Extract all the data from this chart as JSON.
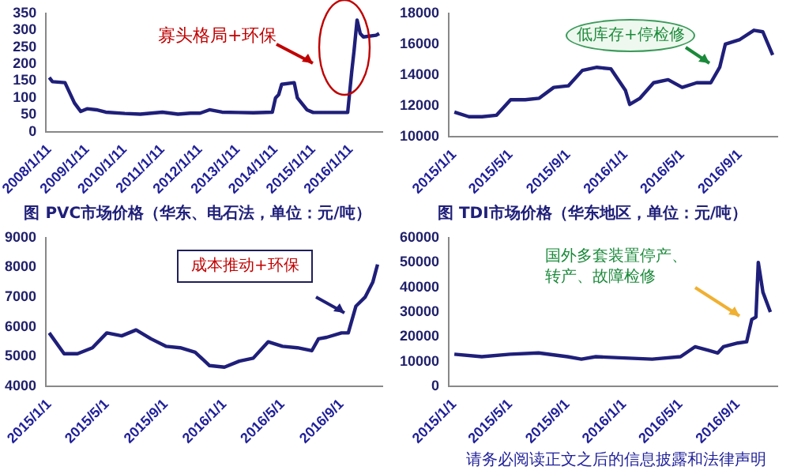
{
  "chart_data": [
    {
      "type": "line",
      "x": [
        "2008-01-01",
        "2008-02-01",
        "2008-06-01",
        "2008-09-01",
        "2008-11-01",
        "2009-01-01",
        "2009-04-01",
        "2009-07-01",
        "2010-01-01",
        "2010-06-01",
        "2011-01-01",
        "2011-06-01",
        "2011-10-01",
        "2012-01-01",
        "2012-04-01",
        "2012-08-01",
        "2013-01-01",
        "2013-06-01",
        "2013-12-01",
        "2014-01-01",
        "2014-02-01",
        "2014-03-01",
        "2014-07-01",
        "2014-08-01",
        "2014-11-01",
        "2015-01-01",
        "2015-12-01",
        "2016-01-10",
        "2016-02-01",
        "2016-03-01",
        "2016-04-01",
        "2016-05-01",
        "2016-09-01",
        "2016-10-01"
      ],
      "series": [
        {
          "color": "#1f1f7a",
          "values": [
            160,
            148,
            145,
            85,
            60,
            68,
            65,
            58,
            54,
            52,
            58,
            52,
            55,
            55,
            65,
            58,
            57,
            56,
            58,
            100,
            110,
            140,
            145,
            100,
            65,
            57,
            57,
            180,
            240,
            330,
            290,
            280,
            285,
            290
          ]
        }
      ],
      "xlim": [
        "2007-12-01",
        "2016-11-01"
      ],
      "xticks": [
        {
          "value": "2008-01-01",
          "label": "2008/1/11"
        },
        {
          "value": "2009-01-01",
          "label": "2009/1/11"
        },
        {
          "value": "2010-01-01",
          "label": "2010/1/11"
        },
        {
          "value": "2011-01-01",
          "label": "2011/1/11"
        },
        {
          "value": "2012-01-01",
          "label": "2012/1/11"
        },
        {
          "value": "2013-01-01",
          "label": "2013/1/11"
        },
        {
          "value": "2014-01-01",
          "label": "2014/1/11"
        },
        {
          "value": "2015-01-01",
          "label": "2015/1/11"
        },
        {
          "value": "2016-01-01",
          "label": "2016/1/11"
        }
      ],
      "ylim": [
        0,
        350
      ],
      "yticks": [
        0,
        50,
        100,
        150,
        200,
        250,
        300,
        350
      ],
      "grid": false,
      "legend": false,
      "marker": "none",
      "line_style": "solid",
      "annotations": [
        "寡头格局+环保"
      ]
    },
    {
      "type": "line",
      "x": [
        "2015-01-01",
        "2015-02-01",
        "2015-03-01",
        "2015-04-01",
        "2015-05-01",
        "2015-06-01",
        "2015-07-01",
        "2015-08-01",
        "2015-09-01",
        "2015-10-01",
        "2015-11-01",
        "2015-12-01",
        "2016-01-01",
        "2016-01-10",
        "2016-02-01",
        "2016-03-01",
        "2016-04-01",
        "2016-05-01",
        "2016-06-01",
        "2016-07-01",
        "2016-07-20",
        "2016-08-01",
        "2016-09-01",
        "2016-10-01",
        "2016-10-20",
        "2016-11-10"
      ],
      "series": [
        {
          "color": "#1f1f7a",
          "values": [
            11600,
            11300,
            11300,
            11400,
            12400,
            12400,
            12500,
            13200,
            13300,
            14300,
            14500,
            14400,
            13000,
            12100,
            12500,
            13500,
            13700,
            13200,
            13500,
            13500,
            14500,
            16000,
            16300,
            16900,
            16800,
            15300
          ]
        }
      ],
      "xlim": [
        "2014-12-20",
        "2016-11-20"
      ],
      "xticks": [
        {
          "value": "2015-01-01",
          "label": "2015/1/1"
        },
        {
          "value": "2015-05-01",
          "label": "2015/5/1"
        },
        {
          "value": "2015-09-01",
          "label": "2015/9/1"
        },
        {
          "value": "2016-01-01",
          "label": "2016/1/1"
        },
        {
          "value": "2016-05-01",
          "label": "2016/5/1"
        },
        {
          "value": "2016-09-01",
          "label": "2016/9/1"
        }
      ],
      "ylim": [
        10000,
        18000
      ],
      "yticks": [
        10000,
        12000,
        14000,
        16000,
        18000
      ],
      "grid": false,
      "legend": false,
      "marker": "none",
      "line_style": "solid",
      "annotations": [
        "低库存+停检修"
      ]
    },
    {
      "type": "line",
      "title": "图 PVC市场价格（华东、电石法，单位：元/吨）",
      "x": [
        "2015-01-01",
        "2015-02-01",
        "2015-03-01",
        "2015-04-01",
        "2015-05-01",
        "2015-06-01",
        "2015-07-01",
        "2015-08-01",
        "2015-09-01",
        "2015-10-01",
        "2015-11-01",
        "2015-12-01",
        "2016-01-01",
        "2016-02-01",
        "2016-03-01",
        "2016-04-01",
        "2016-05-01",
        "2016-06-01",
        "2016-07-01",
        "2016-07-15",
        "2016-08-01",
        "2016-09-01",
        "2016-09-15",
        "2016-10-01",
        "2016-10-20",
        "2016-11-05",
        "2016-11-15"
      ],
      "series": [
        {
          "color": "#1f1f7a",
          "values": [
            5800,
            5100,
            5100,
            5300,
            5800,
            5700,
            5900,
            5600,
            5350,
            5300,
            5150,
            4700,
            4650,
            4850,
            4950,
            5500,
            5350,
            5300,
            5200,
            5600,
            5650,
            5800,
            5800,
            6700,
            7000,
            7500,
            8100
          ]
        }
      ],
      "xlim": [
        "2014-12-25",
        "2016-11-25"
      ],
      "xticks": [
        {
          "value": "2015-01-01",
          "label": "2015/1/1"
        },
        {
          "value": "2015-05-01",
          "label": "2015/5/1"
        },
        {
          "value": "2015-09-01",
          "label": "2015/9/1"
        },
        {
          "value": "2016-01-01",
          "label": "2016/1/1"
        },
        {
          "value": "2016-05-01",
          "label": "2016/5/1"
        },
        {
          "value": "2016-09-01",
          "label": "2016/9/1"
        }
      ],
      "ylim": [
        4000,
        9000
      ],
      "yticks": [
        4000,
        5000,
        6000,
        7000,
        8000,
        9000
      ],
      "grid": false,
      "legend": false,
      "marker": "none",
      "line_style": "solid",
      "annotations": [
        "成本推动+环保"
      ]
    },
    {
      "type": "line",
      "title": "图 TDI市场价格（华东地区，单位：元/吨）",
      "x": [
        "2015-01-01",
        "2015-03-01",
        "2015-05-01",
        "2015-07-01",
        "2015-09-01",
        "2015-10-01",
        "2015-11-01",
        "2016-01-01",
        "2016-03-01",
        "2016-05-01",
        "2016-06-01",
        "2016-07-01",
        "2016-07-20",
        "2016-08-01",
        "2016-09-01",
        "2016-09-20",
        "2016-10-01",
        "2016-10-10",
        "2016-10-15",
        "2016-10-25",
        "2016-11-10"
      ],
      "series": [
        {
          "color": "#1f1f7a",
          "values": [
            13000,
            12000,
            13000,
            13500,
            12000,
            11000,
            12000,
            11500,
            11000,
            12000,
            16000,
            14500,
            13500,
            16000,
            17500,
            18000,
            27000,
            28000,
            50000,
            38000,
            30000
          ]
        }
      ],
      "xlim": [
        "2014-12-20",
        "2016-11-25"
      ],
      "xticks": [
        {
          "value": "2015-01-01",
          "label": "2015/1/1"
        },
        {
          "value": "2015-05-01",
          "label": "2015/5/1"
        },
        {
          "value": "2015-09-01",
          "label": "2015/9/1"
        },
        {
          "value": "2016-01-01",
          "label": "2016/1/1"
        },
        {
          "value": "2016-05-01",
          "label": "2016/5/1"
        },
        {
          "value": "2016-09-01",
          "label": "2016/9/1"
        }
      ],
      "ylim": [
        0,
        60000
      ],
      "yticks": [
        0,
        10000,
        20000,
        30000,
        40000,
        50000,
        60000
      ],
      "grid": false,
      "legend": false,
      "marker": "none",
      "line_style": "solid",
      "annotations": [
        "国外多套装置停产、转产、故障检修",
        "请务必阅读正文之后的信息披露和法律声明"
      ]
    }
  ]
}
